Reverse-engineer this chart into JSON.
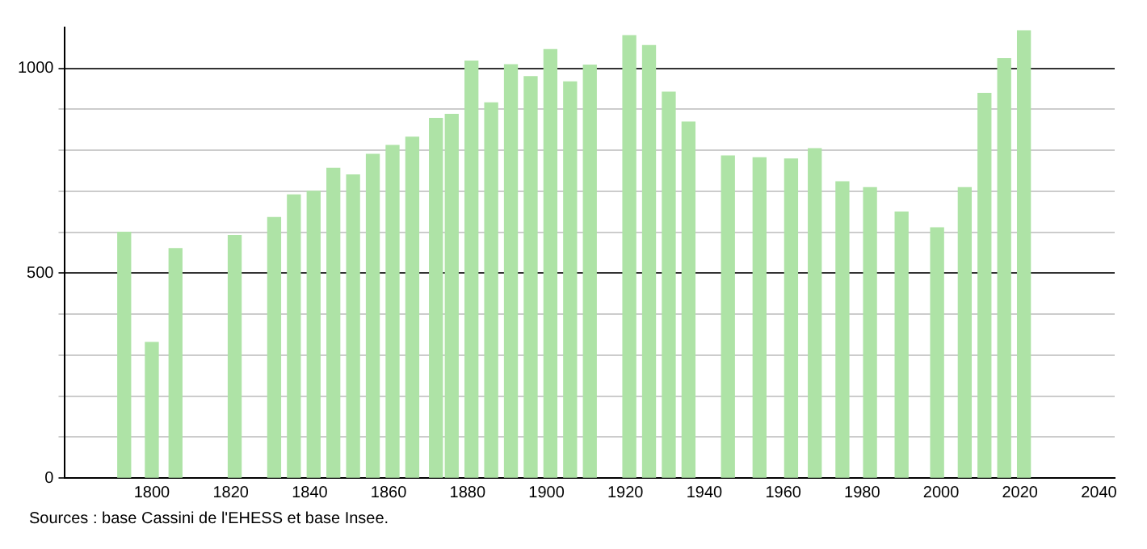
{
  "chart_data": {
    "type": "bar",
    "x": [
      1793,
      1800,
      1806,
      1821,
      1831,
      1836,
      1841,
      1846,
      1851,
      1856,
      1861,
      1866,
      1872,
      1876,
      1881,
      1886,
      1891,
      1896,
      1901,
      1906,
      1911,
      1921,
      1926,
      1931,
      1936,
      1946,
      1954,
      1962,
      1968,
      1975,
      1982,
      1990,
      1999,
      2006,
      2011,
      2016,
      2021
    ],
    "values": [
      600,
      331,
      560,
      592,
      636,
      691,
      700,
      756,
      740,
      790,
      812,
      832,
      878,
      888,
      1018,
      916,
      1009,
      980,
      1046,
      967,
      1008,
      1080,
      1056,
      942,
      869,
      786,
      782,
      779,
      804,
      723,
      709,
      649,
      611,
      709,
      939,
      1024,
      1092
    ],
    "color": "#aee3a6",
    "xlim": [
      1778,
      2044
    ],
    "xticks": [
      1800,
      1820,
      1840,
      1860,
      1880,
      1900,
      1920,
      1940,
      1960,
      1980,
      2000,
      2020,
      2040
    ],
    "ylim": [
      0,
      1100
    ],
    "yticks": [
      0,
      {
        "value": 100,
        "label": null
      },
      {
        "value": 200,
        "label": null
      },
      {
        "value": 300,
        "label": null
      },
      {
        "value": 400,
        "label": null
      },
      500,
      {
        "value": 600,
        "label": null
      },
      {
        "value": 700,
        "label": null
      },
      {
        "value": 800,
        "label": null
      },
      {
        "value": 900,
        "label": null
      },
      1000
    ],
    "grid": "y",
    "legend": false,
    "annotations": [
      "Sources : base Cassini de l'EHESS et base Insee."
    ]
  }
}
